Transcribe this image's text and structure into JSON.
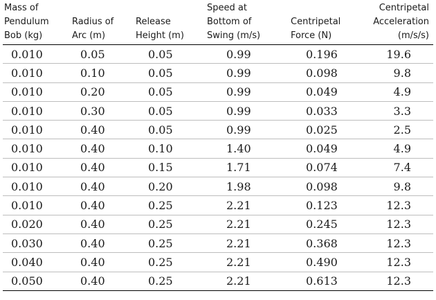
{
  "table": {
    "headers": [
      "Mass of\nPendulum\nBob (kg)",
      "Radius of\nArc (m)",
      "Release\nHeight (m)",
      "Speed at\nBottom of\nSwing (m/s)",
      "Centripetal\nForce (N)",
      "Centripetal\nAcceleration\n(m/s/s)"
    ],
    "rows": [
      [
        "0.010",
        "0.05",
        "0.05",
        "0.99",
        "0.196",
        "19.6"
      ],
      [
        "0.010",
        "0.10",
        "0.05",
        "0.99",
        "0.098",
        "9.8"
      ],
      [
        "0.010",
        "0.20",
        "0.05",
        "0.99",
        "0.049",
        "4.9"
      ],
      [
        "0.010",
        "0.30",
        "0.05",
        "0.99",
        "0.033",
        "3.3"
      ],
      [
        "0.010",
        "0.40",
        "0.05",
        "0.99",
        "0.025",
        "2.5"
      ],
      [
        "0.010",
        "0.40",
        "0.10",
        "1.40",
        "0.049",
        "4.9"
      ],
      [
        "0.010",
        "0.40",
        "0.15",
        "1.71",
        "0.074",
        "7.4"
      ],
      [
        "0.010",
        "0.40",
        "0.20",
        "1.98",
        "0.098",
        "9.8"
      ],
      [
        "0.010",
        "0.40",
        "0.25",
        "2.21",
        "0.123",
        "12.3"
      ],
      [
        "0.020",
        "0.40",
        "0.25",
        "2.21",
        "0.245",
        "12.3"
      ],
      [
        "0.030",
        "0.40",
        "0.25",
        "2.21",
        "0.368",
        "12.3"
      ],
      [
        "0.040",
        "0.40",
        "0.25",
        "2.21",
        "0.490",
        "12.3"
      ],
      [
        "0.050",
        "0.40",
        "0.25",
        "2.21",
        "0.613",
        "12.3"
      ]
    ]
  }
}
